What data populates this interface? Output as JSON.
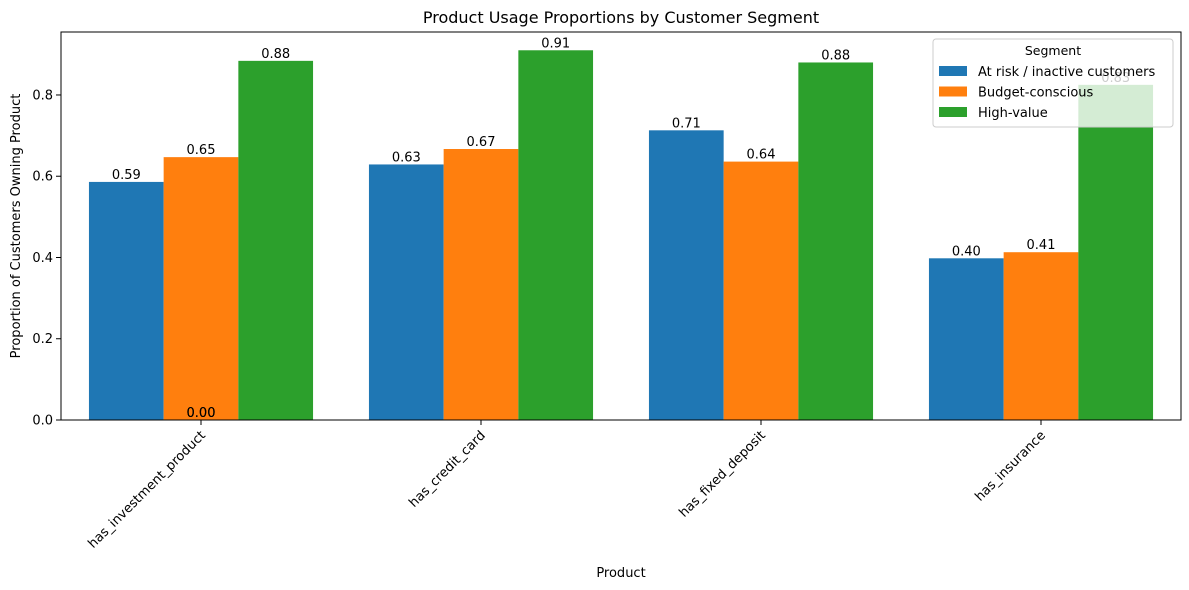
{
  "chart_data": {
    "type": "bar",
    "title": "Product Usage Proportions by Customer Segment",
    "xlabel": "Product",
    "ylabel": "Proportion of Customers Owning Product",
    "categories": [
      "has_investment_product",
      "has_credit_card",
      "has_fixed_deposit",
      "has_insurance"
    ],
    "series": [
      {
        "name": "At risk / inactive customers",
        "color": "#1f77b4",
        "values": [
          0.586,
          0.629,
          0.713,
          0.398
        ],
        "labels": [
          "0.59",
          "0.63",
          "0.71",
          "0.40"
        ]
      },
      {
        "name": "Budget-conscious",
        "color": "#ff7f0e",
        "values": [
          0.647,
          0.667,
          0.636,
          0.413
        ],
        "labels": [
          "0.65",
          "0.67",
          "0.64",
          "0.41"
        ]
      },
      {
        "name": "High-value",
        "color": "#2ca02c",
        "values": [
          0.884,
          0.91,
          0.88,
          0.825
        ],
        "labels": [
          "0.88",
          "0.91",
          "0.88",
          "0.83"
        ]
      }
    ],
    "extra_labels": [
      "0.00",
      "0.00"
    ],
    "yticks": [
      "0.0",
      "0.2",
      "0.4",
      "0.6",
      "0.8"
    ],
    "ylim": [
      0,
      0.955
    ],
    "legend": {
      "title": "Segment",
      "position": "top-right"
    },
    "grid": false
  }
}
